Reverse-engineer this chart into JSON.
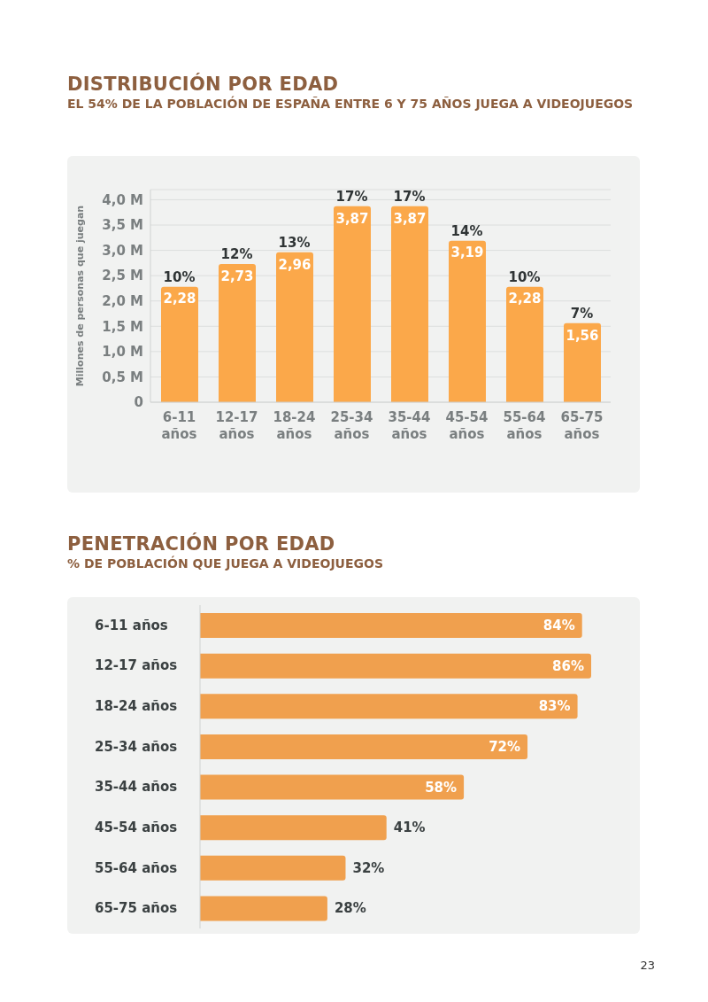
{
  "chart_data": [
    {
      "type": "bar",
      "title": "DISTRIBUCIÓN POR EDAD",
      "subtitle": "EL 54% DE LA POBLACIÓN DE ESPAÑA ENTRE 6 Y 75 AÑOS JUEGA A VIDEOJUEGOS",
      "ylabel": "Millones de personas que juegan",
      "categories": [
        "6-11 años",
        "12-17 años",
        "18-24 años",
        "25-34 años",
        "35-44 años",
        "45-54 años",
        "55-64 años",
        "65-75 años"
      ],
      "values": [
        2.28,
        2.73,
        2.96,
        3.87,
        3.87,
        3.19,
        2.28,
        1.56
      ],
      "value_labels": [
        "2,28",
        "2,73",
        "2,96",
        "3,87",
        "3,87",
        "3,19",
        "2,28",
        "1,56"
      ],
      "color": "#fba84a",
      "ylim": [
        0,
        4.2
      ],
      "yticks": [
        {
          "value": 0,
          "label": "0"
        },
        {
          "value": 0.5,
          "label": "0,5 M"
        },
        {
          "value": 1,
          "label": "1,0 M"
        },
        {
          "value": 1.5,
          "label": "1,5 M"
        },
        {
          "value": 2,
          "label": "2,0 M"
        },
        {
          "value": 2.5,
          "label": "2,5 M"
        },
        {
          "value": 3,
          "label": "3,0 M"
        },
        {
          "value": 3.5,
          "label": "3,5 M"
        },
        {
          "value": 4,
          "label": "4,0 M"
        }
      ],
      "grid": "y",
      "annotations": [
        {
          "text": "10%",
          "x": "6-11 años",
          "y": 2.28
        },
        {
          "text": "12%",
          "x": "12-17 años",
          "y": 2.73
        },
        {
          "text": "13%",
          "x": "18-24 años",
          "y": 2.96
        },
        {
          "text": "17%",
          "x": "25-34 años",
          "y": 3.87
        },
        {
          "text": "17%",
          "x": "35-44 años",
          "y": 3.87
        },
        {
          "text": "14%",
          "x": "45-54 años",
          "y": 3.19
        },
        {
          "text": "10%",
          "x": "55-64 años",
          "y": 2.28
        },
        {
          "text": "7%",
          "x": "65-75 años",
          "y": 1.56
        }
      ]
    },
    {
      "type": "bar",
      "orientation": "horizontal",
      "title": "PENETRACIÓN POR EDAD",
      "subtitle": "% DE POBLACIÓN QUE JUEGA A VIDEOJUEGOS",
      "categories": [
        "6-11 años",
        "12-17 años",
        "18-24 años",
        "25-34 años",
        "35-44 años",
        "45-54 años",
        "55-64 años",
        "65-75 años"
      ],
      "values": [
        84,
        86,
        83,
        72,
        58,
        41,
        32,
        28
      ],
      "value_labels": [
        "84%",
        "86%",
        "83%",
        "72%",
        "58%",
        "41%",
        "32%",
        "28%"
      ],
      "color": "#f0a04e",
      "xlim": [
        0,
        86
      ],
      "tick_labels": "y",
      "annotations": [
        "23"
      ]
    }
  ]
}
